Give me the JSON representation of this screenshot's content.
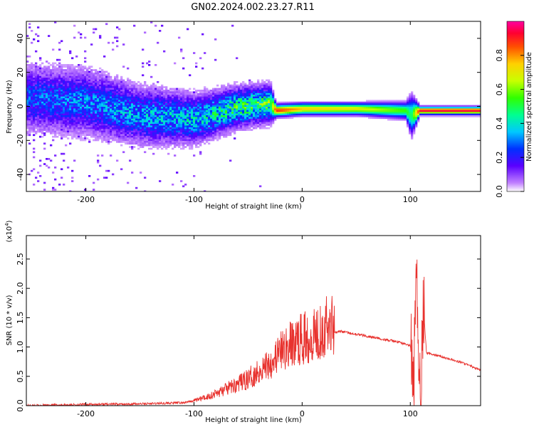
{
  "title": "GN02.2024.002.23.27.R11",
  "chart_data": [
    {
      "type": "heatmap",
      "xlabel": "Height of straight line (km)",
      "ylabel": "Frequency (Hz)",
      "xlim": [
        -255,
        165
      ],
      "ylim": [
        -50,
        50
      ],
      "x_ticks": [
        -200,
        -100,
        0,
        100
      ],
      "x_tick_labels": [
        "-200",
        "-100",
        "0",
        "100"
      ],
      "y_ticks": [
        -40,
        -20,
        0,
        20,
        40
      ],
      "y_tick_labels": [
        "-40",
        "-20",
        "0",
        "20",
        "40"
      ],
      "colorbar": {
        "label": "Normalized spectral amplitude",
        "range": [
          0,
          1
        ],
        "ticks": [
          0.0,
          0.2,
          0.4,
          0.6,
          0.8
        ],
        "tick_labels": [
          "0.0",
          "0.2",
          "0.4",
          "0.6",
          "0.8"
        ]
      },
      "ridge": [
        {
          "x": -250,
          "center": 5,
          "width": 16,
          "amp": 0.25
        },
        {
          "x": -200,
          "center": 3,
          "width": 16,
          "amp": 0.28
        },
        {
          "x": -150,
          "center": -5,
          "width": 14,
          "amp": 0.32
        },
        {
          "x": -100,
          "center": -7,
          "width": 12,
          "amp": 0.35
        },
        {
          "x": -60,
          "center": 0,
          "width": 10,
          "amp": 0.45
        },
        {
          "x": -30,
          "center": 2,
          "width": 9,
          "amp": 0.5
        },
        {
          "x": -25,
          "center": -2,
          "width": 3,
          "amp": 0.9
        },
        {
          "x": 0,
          "center": -1,
          "width": 3,
          "amp": 0.75
        },
        {
          "x": 50,
          "center": -1,
          "width": 3,
          "amp": 0.7
        },
        {
          "x": 95,
          "center": -2,
          "width": 4,
          "amp": 0.55
        },
        {
          "x": 100,
          "center": -5,
          "width": 10,
          "amp": 0.45
        },
        {
          "x": 108,
          "center": -2,
          "width": 2,
          "amp": 0.95
        },
        {
          "x": 165,
          "center": -2,
          "width": 2,
          "amp": 0.95
        }
      ],
      "grid": false
    },
    {
      "type": "line",
      "xlabel": "Height of straight line (km)",
      "ylabel": "SNR (10 * v/v)",
      "y_multiplier_label": "(x10",
      "y_multiplier_exp": "4",
      "y_multiplier_close": ")",
      "xlim": [
        -255,
        165
      ],
      "ylim": [
        0,
        2.9
      ],
      "x_ticks": [
        -200,
        -100,
        0,
        100
      ],
      "x_tick_labels": [
        "-200",
        "-100",
        "0",
        "100"
      ],
      "y_ticks": [
        0.0,
        0.5,
        1.0,
        1.5,
        2.0,
        2.5
      ],
      "y_tick_labels": [
        "0.0",
        "0.5",
        "1.0",
        "1.5",
        "2.0",
        "2.5"
      ],
      "series": [
        {
          "color": "#e8322e",
          "x": [
            -255,
            -200,
            -150,
            -110,
            -100,
            -90,
            -80,
            -70,
            -60,
            -50,
            -40,
            -30,
            -20,
            -10,
            0,
            10,
            20,
            30,
            35,
            50,
            70,
            90,
            100,
            103,
            106,
            109,
            112,
            115,
            130,
            150,
            165
          ],
          "y": [
            0.0,
            0.02,
            0.03,
            0.05,
            0.08,
            0.12,
            0.18,
            0.25,
            0.32,
            0.4,
            0.52,
            0.65,
            0.8,
            0.92,
            1.0,
            1.08,
            1.18,
            1.25,
            1.27,
            1.22,
            1.15,
            1.08,
            1.02,
            0.2,
            2.2,
            0.15,
            1.7,
            0.9,
            0.83,
            0.72,
            0.6
          ]
        }
      ],
      "grid": false
    }
  ]
}
